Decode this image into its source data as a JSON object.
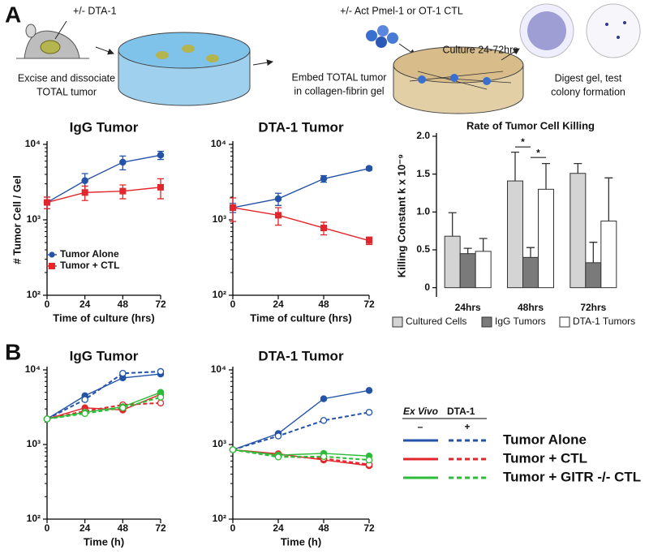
{
  "panel_labels": [
    "A",
    "B"
  ],
  "schematic": {
    "mouse_treatment": "+/- DTA-1",
    "step1": [
      "Excise and dissociate",
      "TOTAL tumor"
    ],
    "step2": [
      "Embed TOTAL tumor",
      "in collagen-fibrin gel"
    ],
    "ctl": "+/- Act Pmel-1 or OT-1 CTL",
    "culture": "Culture 24-72hrs",
    "step3": [
      "Digest gel, test",
      "colony formation"
    ]
  },
  "legend": {
    "header": [
      "Ex Vivo",
      "DTA-1"
    ],
    "columns": [
      "–",
      "+"
    ],
    "rows": [
      "Tumor Alone",
      "Tumor + CTL",
      "Tumor + GITR -/- CTL"
    ]
  },
  "chart_data": [
    {
      "type": "line",
      "title": "IgG Tumor",
      "xlabel": "Time of culture (hrs)",
      "ylabel": "# Tumor Cell / Gel",
      "log_y": true,
      "x": [
        0,
        24,
        48,
        72
      ],
      "xlim": [
        0,
        72
      ],
      "xticks": [
        0,
        24,
        48,
        72
      ],
      "ylim": [
        100,
        10000
      ],
      "yticks": [
        {
          "value": 100,
          "label": "10²"
        },
        {
          "value": 1000,
          "label": "10³"
        },
        {
          "value": 10000,
          "label": "10⁴"
        }
      ],
      "legend": "lower left",
      "series": [
        {
          "name": "Tumor Alone",
          "color": "#2453a8",
          "marker": "circle",
          "values": [
            1700,
            3300,
            5800,
            7200
          ],
          "errors": [
            300,
            800,
            1200,
            900
          ]
        },
        {
          "name": "Tumor + CTL",
          "color": "#e3262b",
          "marker": "square",
          "values": [
            1700,
            2300,
            2400,
            2700
          ],
          "errors": [
            300,
            500,
            500,
            800
          ]
        }
      ]
    },
    {
      "type": "line",
      "title": "DTA-1 Tumor",
      "xlabel": "Time of culture (hrs)",
      "log_y": true,
      "x": [
        0,
        24,
        48,
        72
      ],
      "xlim": [
        0,
        72
      ],
      "xticks": [
        0,
        24,
        48,
        72
      ],
      "ylim": [
        100,
        10000
      ],
      "yticks": [
        {
          "value": 100,
          "label": "10²"
        },
        {
          "value": 1000,
          "label": "10³"
        },
        {
          "value": 10000,
          "label": "10⁴"
        }
      ],
      "series": [
        {
          "color": "#2453a8",
          "marker": "circle",
          "values": [
            1450,
            1900,
            3500,
            4800
          ],
          "errors": [
            200,
            350,
            350,
            250
          ]
        },
        {
          "color": "#e3262b",
          "marker": "square",
          "values": [
            1450,
            1150,
            780,
            530
          ],
          "errors": [
            500,
            300,
            150,
            60
          ]
        }
      ]
    },
    {
      "type": "bar",
      "title": "Rate of Tumor Cell Killing",
      "ylabel": "Killing Constant k x 10⁻⁹",
      "categories": [
        "24hrs",
        "48hrs",
        "72hrs"
      ],
      "ylim": [
        -0.1,
        2.0
      ],
      "yticks": [
        0,
        0.5,
        {
          "value": 1.0,
          "label": "1.0"
        },
        1.5,
        {
          "value": 2.0,
          "label": "2.0"
        }
      ],
      "legend": "bottom",
      "annotations": [
        "*",
        "*"
      ],
      "series": [
        {
          "name": "Cultured Cells",
          "color": "#d4d4d4",
          "values": [
            0.68,
            1.41,
            1.51
          ],
          "errors": [
            0.31,
            0.38,
            0.13
          ]
        },
        {
          "name": "IgG Tumors",
          "color": "#7a7a7a",
          "values": [
            0.45,
            0.4,
            0.33
          ],
          "errors": [
            0.07,
            0.13,
            0.27
          ]
        },
        {
          "name": "DTA-1 Tumors",
          "color": "#ffffff",
          "values": [
            0.48,
            1.3,
            0.88
          ],
          "errors": [
            0.17,
            0.34,
            0.57
          ]
        }
      ]
    },
    {
      "type": "line",
      "title": "IgG Tumor",
      "xlabel": "Time (h)",
      "log_y": true,
      "x": [
        0,
        24,
        48,
        72
      ],
      "xlim": [
        0,
        72
      ],
      "xticks": [
        0,
        24,
        48,
        72
      ],
      "ylim": [
        100,
        10000
      ],
      "yticks": [
        {
          "value": 100,
          "label": "10²"
        },
        {
          "value": 1000,
          "label": "10³"
        },
        {
          "value": 10000,
          "label": "10⁴"
        }
      ],
      "series": [
        {
          "color": "#2453a8",
          "marker": "circle",
          "values": [
            2200,
            4500,
            7800,
            8800
          ]
        },
        {
          "color": "#2453a8",
          "marker": "open-circle",
          "dashed": true,
          "values": [
            2200,
            4000,
            9000,
            9500
          ]
        },
        {
          "color": "#e3262b",
          "marker": "circle",
          "values": [
            2200,
            3100,
            2900,
            4700
          ]
        },
        {
          "color": "#e3262b",
          "marker": "open-circle",
          "dashed": true,
          "values": [
            2200,
            2800,
            3400,
            3600
          ]
        },
        {
          "color": "#2ebd3a",
          "marker": "circle",
          "values": [
            2200,
            2700,
            3200,
            5000
          ]
        },
        {
          "color": "#2ebd3a",
          "marker": "open-circle",
          "dashed": true,
          "values": [
            2200,
            2600,
            3100,
            4300
          ]
        }
      ]
    },
    {
      "type": "line",
      "title": "DTA-1 Tumor",
      "xlabel": "Time (h)",
      "log_y": true,
      "x": [
        0,
        24,
        48,
        72
      ],
      "xlim": [
        0,
        72
      ],
      "xticks": [
        0,
        24,
        48,
        72
      ],
      "ylim": [
        100,
        10000
      ],
      "yticks": [
        {
          "value": 100,
          "label": "10²"
        },
        {
          "value": 1000,
          "label": "10³"
        },
        {
          "value": 10000,
          "label": "10⁴"
        }
      ],
      "series": [
        {
          "color": "#2453a8",
          "marker": "circle",
          "values": [
            850,
            1400,
            4100,
            5300
          ]
        },
        {
          "color": "#2453a8",
          "marker": "open-circle",
          "dashed": true,
          "values": [
            850,
            1300,
            2100,
            2700
          ]
        },
        {
          "color": "#e3262b",
          "marker": "circle",
          "values": [
            850,
            750,
            620,
            520
          ]
        },
        {
          "color": "#e3262b",
          "marker": "open-circle",
          "dashed": true,
          "values": [
            850,
            700,
            650,
            540
          ]
        },
        {
          "color": "#2ebd3a",
          "marker": "circle",
          "values": [
            850,
            720,
            760,
            700
          ]
        },
        {
          "color": "#2ebd3a",
          "marker": "open-circle",
          "dashed": true,
          "values": [
            850,
            680,
            690,
            620
          ]
        }
      ]
    }
  ]
}
